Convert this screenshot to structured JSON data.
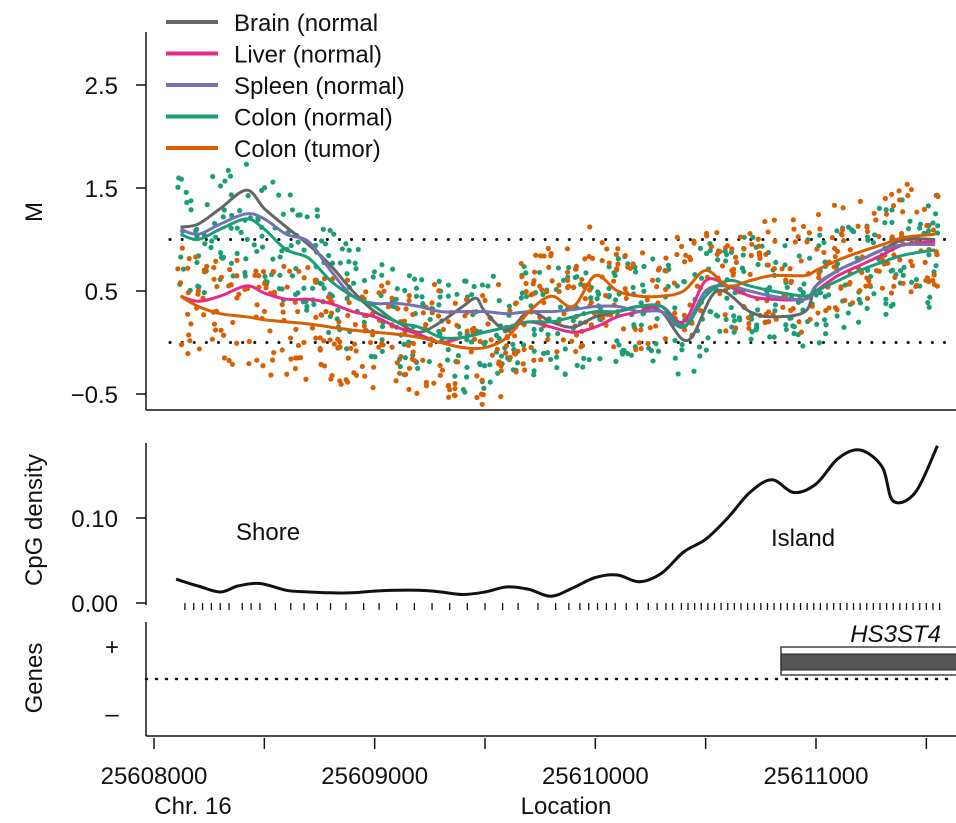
{
  "figure": {
    "x_axis": {
      "label": "Location",
      "chromosome_label": "Chr. 16",
      "ticks": [
        25608000,
        25609000,
        25610000,
        25611000
      ],
      "tick_labels": [
        "25608000",
        "25609000",
        "25610000",
        "25611000"
      ]
    }
  },
  "chart_data": [
    {
      "type": "scatter",
      "panel": "methylation",
      "ylabel": "M",
      "ylim": [
        -0.65,
        3.1
      ],
      "yticks": [
        -0.5,
        0.5,
        1.5,
        2.5
      ],
      "ytick_labels": [
        "−0.5",
        "0.5",
        "1.5",
        "2.5"
      ],
      "reference_lines_y": [
        0,
        1
      ],
      "xlim": [
        25607990,
        25611630
      ],
      "legend_position": "top-left",
      "series": [
        {
          "name": "Brain (normal",
          "color": "#666666",
          "x": [
            25608120,
            25608200,
            25608300,
            25608420,
            25608500,
            25608600,
            25608700,
            25608800,
            25608900,
            25609000,
            25609100,
            25609200,
            25609300,
            25609400,
            25609460,
            25609500,
            25609600,
            25609700,
            25609800,
            25609900,
            25610000,
            25610100,
            25610200,
            25610300,
            25610420,
            25610550,
            25610700,
            25610800,
            25610950,
            25611000,
            25611100,
            25611200,
            25611300,
            25611400,
            25611540
          ],
          "y": [
            1.12,
            1.15,
            1.3,
            1.48,
            1.3,
            1.12,
            0.95,
            0.75,
            0.5,
            0.3,
            0.2,
            0.1,
            0.2,
            0.35,
            0.43,
            0.3,
            0.12,
            0.3,
            0.2,
            0.15,
            0.25,
            0.3,
            0.35,
            0.3,
            0.02,
            0.5,
            0.3,
            0.25,
            0.3,
            0.55,
            0.7,
            0.8,
            0.9,
            1.0,
            1.0
          ]
        },
        {
          "name": "Liver (normal)",
          "color": "#e7298a",
          "x": [
            25608120,
            25608200,
            25608300,
            25608420,
            25608500,
            25608600,
            25608700,
            25608800,
            25608900,
            25609000,
            25609100,
            25609200,
            25609300,
            25609400,
            25609500,
            25609600,
            25609700,
            25609800,
            25609900,
            25610000,
            25610100,
            25610200,
            25610300,
            25610400,
            25610500,
            25610600,
            25610700,
            25610800,
            25610950,
            25611000,
            25611100,
            25611200,
            25611300,
            25611400,
            25611540
          ],
          "y": [
            0.45,
            0.4,
            0.45,
            0.55,
            0.48,
            0.42,
            0.42,
            0.38,
            0.3,
            0.25,
            0.15,
            0.08,
            0.0,
            0.05,
            0.1,
            0.15,
            0.2,
            0.15,
            0.1,
            0.15,
            0.25,
            0.3,
            0.35,
            0.2,
            0.6,
            0.55,
            0.45,
            0.42,
            0.42,
            0.5,
            0.65,
            0.75,
            0.85,
            0.95,
            0.98
          ]
        },
        {
          "name": "Spleen (normal)",
          "color": "#7570b3",
          "x": [
            25608120,
            25608200,
            25608300,
            25608420,
            25608500,
            25608600,
            25608700,
            25608800,
            25608900,
            25609000,
            25609100,
            25609200,
            25609300,
            25609400,
            25609500,
            25609600,
            25609700,
            25609800,
            25609900,
            25610000,
            25610100,
            25610200,
            25610300,
            25610400,
            25610500,
            25610600,
            25610700,
            25610800,
            25610950,
            25611000,
            25611100,
            25611200,
            25611300,
            25611400,
            25611540
          ],
          "y": [
            1.1,
            1.05,
            1.15,
            1.25,
            1.2,
            1.05,
            0.98,
            0.7,
            0.45,
            0.38,
            0.38,
            0.35,
            0.3,
            0.3,
            0.3,
            0.28,
            0.3,
            0.3,
            0.32,
            0.35,
            0.35,
            0.3,
            0.3,
            0.15,
            0.5,
            0.55,
            0.5,
            0.45,
            0.42,
            0.55,
            0.7,
            0.8,
            0.9,
            0.95,
            0.95
          ]
        },
        {
          "name": "Colon (normal)",
          "color": "#1b9e77",
          "x": [
            25608120,
            25608200,
            25608300,
            25608420,
            25608500,
            25608600,
            25608700,
            25608800,
            25608900,
            25609000,
            25609100,
            25609200,
            25609300,
            25609400,
            25609500,
            25609600,
            25609700,
            25609800,
            25609900,
            25610000,
            25610100,
            25610200,
            25610300,
            25610400,
            25610500,
            25610600,
            25610700,
            25610800,
            25610950,
            25611000,
            25611100,
            25611200,
            25611300,
            25611400,
            25611540
          ],
          "y": [
            1.05,
            1.0,
            1.1,
            1.2,
            1.1,
            0.9,
            0.82,
            0.6,
            0.45,
            0.35,
            0.2,
            0.15,
            0.05,
            0.05,
            0.1,
            0.15,
            0.2,
            0.2,
            0.25,
            0.3,
            0.3,
            0.35,
            0.35,
            0.15,
            0.45,
            0.6,
            0.55,
            0.5,
            0.45,
            0.5,
            0.6,
            0.7,
            0.78,
            0.85,
            0.9
          ]
        },
        {
          "name": "Colon (tumor)",
          "color": "#d95f02",
          "x": [
            25608120,
            25608200,
            25608300,
            25608420,
            25608500,
            25608600,
            25608700,
            25608800,
            25608900,
            25609000,
            25609100,
            25609200,
            25609300,
            25609400,
            25609500,
            25609600,
            25609700,
            25609800,
            25609900,
            25610000,
            25610100,
            25610200,
            25610300,
            25610400,
            25610500,
            25610600,
            25610700,
            25610800,
            25610950,
            25611000,
            25611100,
            25611200,
            25611300,
            25611400,
            25611540
          ],
          "y": [
            0.45,
            0.35,
            0.28,
            0.25,
            0.22,
            0.2,
            0.18,
            0.15,
            0.12,
            0.1,
            0.08,
            0.05,
            0.0,
            -0.05,
            -0.05,
            0.05,
            0.3,
            0.45,
            0.35,
            0.65,
            0.5,
            0.45,
            0.45,
            0.5,
            0.7,
            0.55,
            0.6,
            0.65,
            0.65,
            0.7,
            0.8,
            0.88,
            0.95,
            1.02,
            1.05
          ]
        }
      ]
    },
    {
      "type": "line",
      "panel": "cpg",
      "ylabel": "CpG density",
      "ylim": [
        0.0,
        0.18
      ],
      "yticks": [
        0.0,
        0.1
      ],
      "ytick_labels": [
        "0.00",
        "0.10"
      ],
      "annotations": [
        "Shore",
        "Island"
      ],
      "x": [
        25608100,
        25608200,
        25608300,
        25608380,
        25608480,
        25608600,
        25608700,
        25608800,
        25608900,
        25609000,
        25609100,
        25609200,
        25609300,
        25609400,
        25609500,
        25609600,
        25609700,
        25609800,
        25609900,
        25610000,
        25610100,
        25610200,
        25610300,
        25610400,
        25610500,
        25610600,
        25610700,
        25610800,
        25610900,
        25611000,
        25611100,
        25611200,
        25611300,
        25611350,
        25611450,
        25611550
      ],
      "y": [
        0.028,
        0.02,
        0.013,
        0.02,
        0.023,
        0.015,
        0.013,
        0.012,
        0.012,
        0.014,
        0.015,
        0.015,
        0.013,
        0.01,
        0.013,
        0.019,
        0.016,
        0.008,
        0.018,
        0.03,
        0.033,
        0.025,
        0.035,
        0.06,
        0.075,
        0.1,
        0.13,
        0.145,
        0.13,
        0.14,
        0.17,
        0.18,
        0.16,
        0.12,
        0.13,
        0.185
      ],
      "cpg_positions": [
        25608140,
        25608180,
        25608220,
        25608260,
        25608300,
        25608340,
        25608400,
        25608440,
        25608480,
        25608550,
        25608620,
        25608680,
        25608740,
        25608800,
        25608870,
        25608950,
        25609020,
        25609100,
        25609180,
        25609260,
        25609340,
        25609420,
        25609500,
        25609580,
        25609650,
        25609740,
        25609820,
        25609880,
        25609930,
        25609970,
        25610010,
        25610050,
        25610090,
        25610140,
        25610190,
        25610240,
        25610280,
        25610320,
        25610350,
        25610390,
        25610420,
        25610450,
        25610480,
        25610510,
        25610540,
        25610570,
        25610600,
        25610630,
        25610660,
        25610690,
        25610720,
        25610750,
        25610780,
        25610810,
        25610840,
        25610870,
        25610900,
        25610930,
        25610960,
        25610990,
        25611020,
        25611050,
        25611080,
        25611110,
        25611140,
        25611170,
        25611200,
        25611230,
        25611260,
        25611290,
        25611320,
        25611350,
        25611380,
        25611410,
        25611440,
        25611470,
        25611500,
        25611530,
        25611560
      ]
    },
    {
      "type": "gene-track",
      "panel": "genes",
      "ylabel": "Genes",
      "strand_labels": [
        "+",
        "–"
      ],
      "genes": [
        {
          "name": "HS3ST4",
          "strand": "+",
          "start": 25610830,
          "end": 25611630
        }
      ]
    }
  ]
}
